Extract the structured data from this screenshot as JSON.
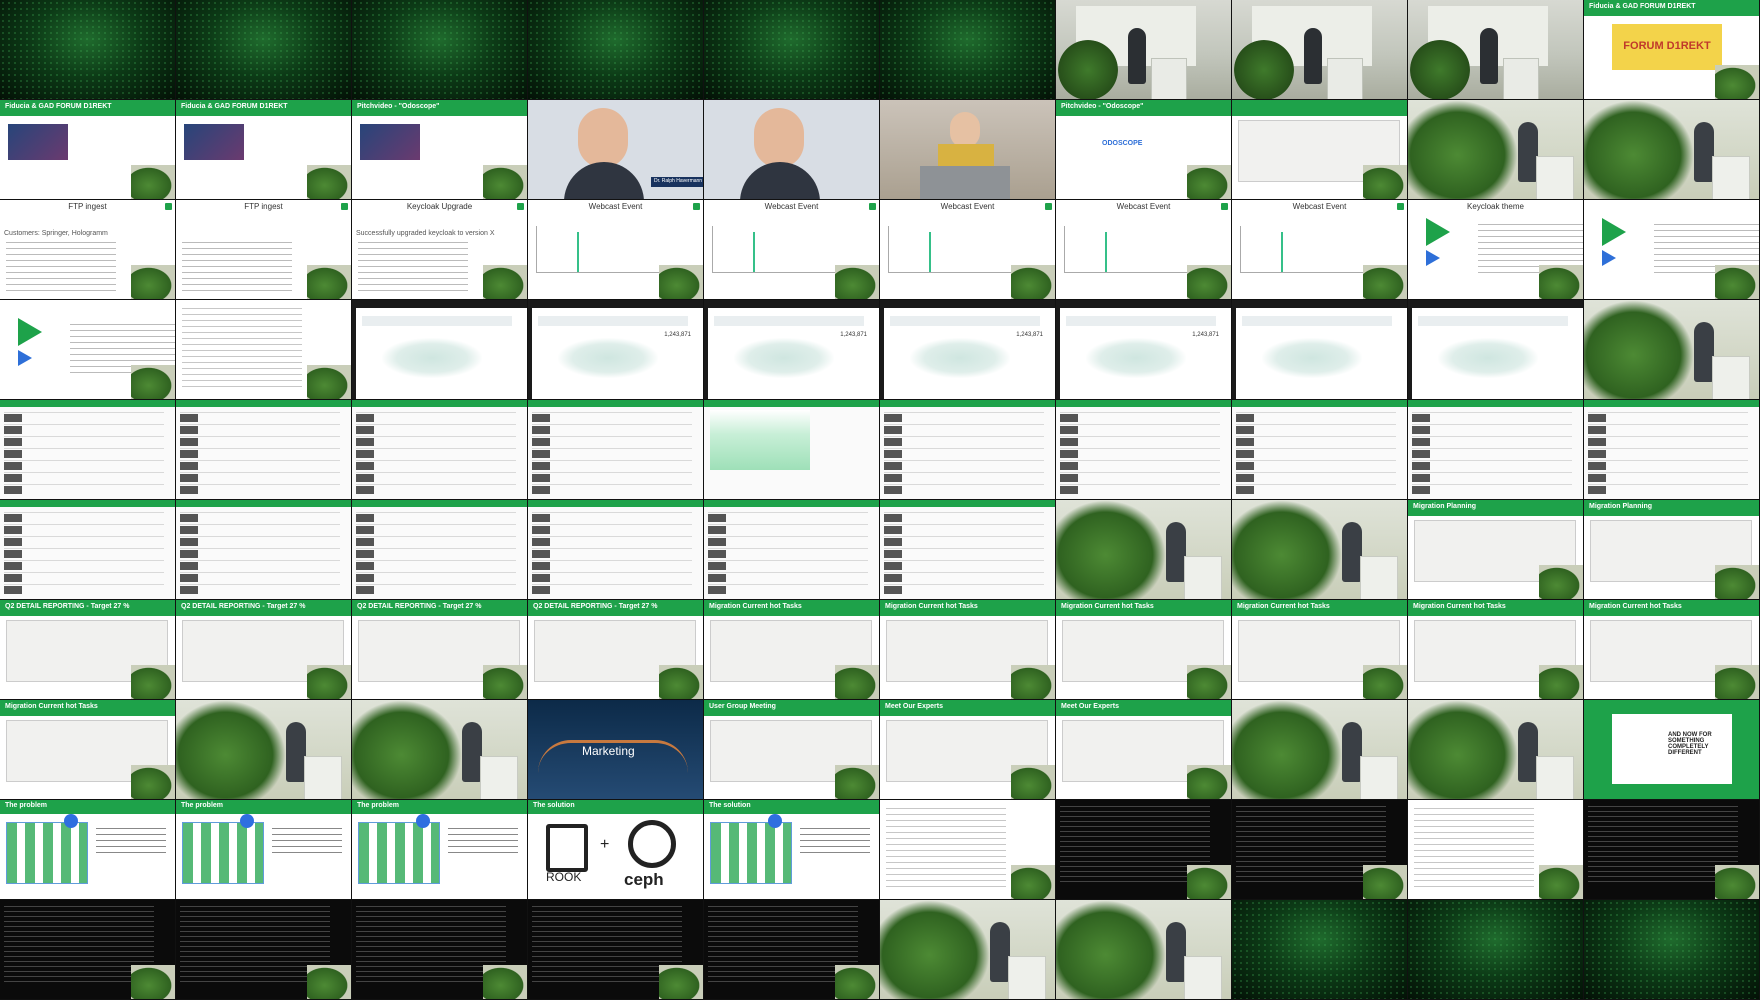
{
  "tiles": [
    {
      "type": "intro"
    },
    {
      "type": "intro"
    },
    {
      "type": "intro"
    },
    {
      "type": "intro"
    },
    {
      "type": "intro"
    },
    {
      "type": "intro"
    },
    {
      "type": "stage"
    },
    {
      "type": "stage"
    },
    {
      "type": "stage"
    },
    {
      "type": "slide-yellow",
      "bar": "Fiducia & GAD FORUM D1REKT",
      "text": "FORUM D1REKT"
    },
    {
      "type": "slide-pic",
      "bar": "Fiducia & GAD FORUM D1REKT"
    },
    {
      "type": "slide-pic",
      "bar": "Fiducia & GAD FORUM D1REKT"
    },
    {
      "type": "slide-pic",
      "bar": "Pitchvideo - \"Odoscope\""
    },
    {
      "type": "people",
      "tag": "Dr. Ralph Havermann"
    },
    {
      "type": "people",
      "tag": ""
    },
    {
      "type": "woman"
    },
    {
      "type": "slide-logo",
      "bar": "Pitchvideo - \"Odoscope\"",
      "text": "ODOSCOPE"
    },
    {
      "type": "slide-board",
      "bar": ""
    },
    {
      "type": "plant"
    },
    {
      "type": "plant"
    },
    {
      "type": "slide-text",
      "title": "FTP ingest",
      "text": "Customers: Springer, Hologramm"
    },
    {
      "type": "slide-text",
      "title": "FTP ingest",
      "text": ""
    },
    {
      "type": "slide-text",
      "title": "Keycloak Upgrade",
      "text": "Successfully upgraded keycloak to version X"
    },
    {
      "type": "slide-chart",
      "title": "Webcast Event"
    },
    {
      "type": "slide-chart",
      "title": "Webcast Event"
    },
    {
      "type": "slide-chart",
      "title": "Webcast Event"
    },
    {
      "type": "slide-chart",
      "title": "Webcast Event"
    },
    {
      "type": "slide-chart",
      "title": "Webcast Event"
    },
    {
      "type": "slide-brand",
      "title": "Keycloak theme"
    },
    {
      "type": "slide-brand",
      "title": ""
    },
    {
      "type": "slide-brand",
      "title": ""
    },
    {
      "type": "white"
    },
    {
      "type": "dash",
      "num": ""
    },
    {
      "type": "dash",
      "num": "1,243,871"
    },
    {
      "type": "dash",
      "num": "1,243,871"
    },
    {
      "type": "dash",
      "num": "1,243,871"
    },
    {
      "type": "dash",
      "num": "1,243,871"
    },
    {
      "type": "dash",
      "num": ""
    },
    {
      "type": "dash",
      "num": ""
    },
    {
      "type": "plant"
    },
    {
      "type": "cms"
    },
    {
      "type": "cms"
    },
    {
      "type": "cms"
    },
    {
      "type": "cms"
    },
    {
      "type": "cms-green"
    },
    {
      "type": "cms"
    },
    {
      "type": "cms"
    },
    {
      "type": "cms"
    },
    {
      "type": "cms"
    },
    {
      "type": "cms"
    },
    {
      "type": "cms"
    },
    {
      "type": "cms"
    },
    {
      "type": "cms"
    },
    {
      "type": "cms"
    },
    {
      "type": "cms"
    },
    {
      "type": "cms"
    },
    {
      "type": "plant"
    },
    {
      "type": "plant"
    },
    {
      "type": "slide-board",
      "bar": "Migration Planning"
    },
    {
      "type": "slide-board",
      "bar": "Migration Planning"
    },
    {
      "type": "slide-board",
      "bar": "Q2 DETAIL REPORTING - Target 27 %"
    },
    {
      "type": "slide-board",
      "bar": "Q2 DETAIL REPORTING - Target 27 %"
    },
    {
      "type": "slide-board",
      "bar": "Q2 DETAIL REPORTING - Target 27 %"
    },
    {
      "type": "slide-board",
      "bar": "Q2 DETAIL REPORTING - Target 27 %"
    },
    {
      "type": "slide-board",
      "bar": "Migration Current hot Tasks"
    },
    {
      "type": "slide-board",
      "bar": "Migration Current hot Tasks"
    },
    {
      "type": "slide-board",
      "bar": "Migration Current hot Tasks"
    },
    {
      "type": "slide-board",
      "bar": "Migration Current hot Tasks"
    },
    {
      "type": "slide-board",
      "bar": "Migration Current hot Tasks"
    },
    {
      "type": "slide-board",
      "bar": "Migration Current hot Tasks"
    },
    {
      "type": "slide-board",
      "bar": "Migration Current hot Tasks"
    },
    {
      "type": "plant"
    },
    {
      "type": "plant"
    },
    {
      "type": "market",
      "text": "Marketing"
    },
    {
      "type": "slide-board",
      "bar": "User Group Meeting"
    },
    {
      "type": "slide-board",
      "bar": "Meet Our Experts"
    },
    {
      "type": "slide-board",
      "bar": "Meet Our Experts"
    },
    {
      "type": "plant"
    },
    {
      "type": "plant"
    },
    {
      "type": "hand",
      "text": "AND NOW FOR SOMETHING COMPLETELY DIFFERENT"
    },
    {
      "type": "diag",
      "bar": "The problem"
    },
    {
      "type": "diag",
      "bar": "The problem"
    },
    {
      "type": "diag",
      "bar": "The problem"
    },
    {
      "type": "rook",
      "bar": "The solution",
      "w1": "ROOK",
      "w2": "ceph"
    },
    {
      "type": "diag",
      "bar": "The solution"
    },
    {
      "type": "white"
    },
    {
      "type": "term"
    },
    {
      "type": "term"
    },
    {
      "type": "white"
    },
    {
      "type": "term"
    },
    {
      "type": "term"
    },
    {
      "type": "term"
    },
    {
      "type": "term"
    },
    {
      "type": "term"
    },
    {
      "type": "term"
    },
    {
      "type": "plant"
    },
    {
      "type": "plant"
    },
    {
      "type": "intro"
    },
    {
      "type": "intro"
    },
    {
      "type": "intro"
    }
  ]
}
